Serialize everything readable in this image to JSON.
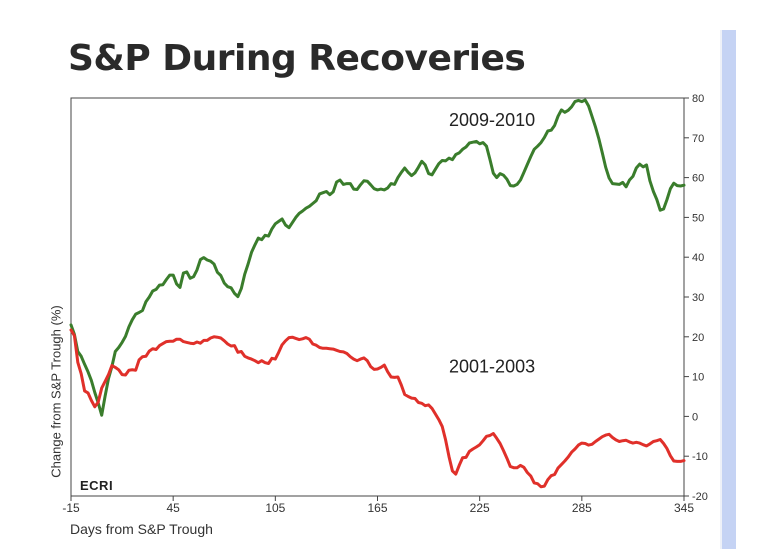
{
  "page": {
    "background": "#ffffff",
    "sidebar_color": "#c5d3f4"
  },
  "chart_data": {
    "type": "line",
    "title": "S&P During Recoveries",
    "xlabel": "Days from S&P Trough",
    "ylabel": "Change from S&P Trough (%)",
    "xlim": [
      -15,
      345
    ],
    "ylim": [
      -20,
      80
    ],
    "x_ticks": [
      -15,
      45,
      105,
      165,
      225,
      285,
      345
    ],
    "y_ticks": [
      -20,
      -10,
      0,
      10,
      20,
      30,
      40,
      50,
      60,
      70,
      80
    ],
    "y_axis_side": "right",
    "grid": false,
    "logo": "ECRI",
    "series": [
      {
        "name": "2009-2010",
        "color": "#3a7d2c",
        "label_pos": [
          207,
          73
        ],
        "x": [
          -15,
          -13,
          -11,
          -9,
          -7,
          -5,
          -3,
          -1,
          1,
          3,
          5,
          7,
          9,
          11,
          13,
          15,
          17,
          19,
          21,
          23,
          25,
          27,
          29,
          31,
          33,
          35,
          37,
          39,
          41,
          43,
          45,
          47,
          49,
          51,
          53,
          55,
          57,
          59,
          61,
          63,
          65,
          67,
          69,
          71,
          73,
          75,
          77,
          79,
          81,
          83,
          85,
          87,
          89,
          91,
          93,
          95,
          97,
          99,
          101,
          103,
          105,
          107,
          109,
          111,
          113,
          115,
          117,
          119,
          121,
          123,
          125,
          127,
          129,
          131,
          133,
          135,
          137,
          139,
          141,
          143,
          145,
          147,
          149,
          151,
          153,
          155,
          157,
          159,
          161,
          163,
          165,
          167,
          169,
          171,
          173,
          175,
          177,
          179,
          181,
          183,
          185,
          187,
          189,
          191,
          193,
          195,
          197,
          199,
          201,
          203,
          205,
          207,
          209,
          211,
          213,
          215,
          217,
          219,
          221,
          223,
          225,
          227,
          229,
          231,
          233,
          235,
          237,
          239,
          241,
          243,
          245,
          247,
          249,
          251,
          253,
          255,
          257,
          259,
          261,
          263,
          265,
          267,
          269,
          271,
          273,
          275,
          277,
          279,
          281,
          283,
          285,
          287,
          289,
          291,
          293,
          295,
          297,
          299,
          301,
          303,
          305,
          307,
          309,
          311,
          313,
          315,
          317,
          319,
          321,
          323,
          325,
          327,
          329,
          331,
          333,
          335,
          337,
          339,
          341,
          343,
          345
        ],
        "values": [
          23.0,
          20.6,
          16.3,
          15.1,
          13.1,
          11.2,
          9.0,
          6.0,
          3.4,
          0.3,
          5.1,
          9.5,
          12.5,
          16.3,
          17.3,
          18.6,
          20.1,
          22.5,
          24.3,
          25.7,
          26.1,
          26.6,
          28.8,
          30.0,
          31.5,
          31.9,
          33.0,
          33.1,
          34.4,
          35.5,
          35.5,
          33.3,
          32.4,
          36.0,
          36.3,
          34.7,
          35.1,
          36.8,
          39.4,
          39.9,
          39.3,
          39.0,
          38.3,
          36.2,
          35.4,
          33.5,
          32.6,
          32.3,
          30.9,
          30.1,
          32.1,
          35.7,
          38.3,
          41.2,
          43.1,
          44.8,
          44.4,
          45.5,
          45.3,
          47.1,
          48.4,
          49.0,
          49.6,
          48.1,
          47.4,
          48.7,
          50.0,
          51.0,
          51.6,
          52.3,
          52.8,
          53.5,
          54.2,
          55.9,
          56.2,
          56.5,
          55.7,
          56.4,
          58.9,
          59.4,
          58.3,
          58.5,
          58.5,
          57.1,
          57.0,
          58.2,
          59.2,
          59.1,
          58.2,
          57.2,
          56.9,
          57.1,
          56.9,
          57.4,
          58.5,
          58.3,
          60.0,
          61.3,
          62.4,
          61.3,
          60.5,
          61.2,
          62.6,
          64.1,
          63.2,
          61.0,
          60.7,
          62.1,
          63.5,
          64.3,
          64.2,
          64.9,
          64.5,
          65.8,
          66.2,
          67.1,
          67.7,
          68.7,
          68.9,
          69.1,
          68.5,
          68.8,
          67.9,
          64.6,
          61.1,
          60.0,
          61.0,
          60.6,
          59.6,
          58.0,
          57.9,
          58.3,
          59.4,
          61.3,
          63.3,
          65.3,
          67.1,
          67.9,
          68.8,
          70.1,
          71.7,
          71.9,
          73.1,
          75.4,
          77.0,
          76.4,
          76.9,
          77.8,
          79.1,
          79.4,
          79.1,
          79.5,
          78.0,
          75.4,
          72.7,
          69.7,
          66.2,
          62.6,
          59.9,
          58.5,
          58.4,
          58.3,
          58.8,
          57.7,
          59.4,
          60.3,
          62.4,
          63.4,
          62.7,
          63.2,
          59.2,
          56.5,
          54.5,
          51.8,
          52.1,
          54.5,
          57.2,
          58.6,
          58.0,
          57.9,
          58.1
        ]
      },
      {
        "name": "2001-2003",
        "color": "#e0302a",
        "label_pos": [
          207,
          11
        ],
        "x": [
          -15,
          -13,
          -11,
          -9,
          -7,
          -5,
          -3,
          -1,
          1,
          3,
          5,
          7,
          9,
          11,
          13,
          15,
          17,
          19,
          21,
          23,
          25,
          27,
          29,
          31,
          33,
          35,
          37,
          39,
          41,
          43,
          45,
          47,
          49,
          51,
          53,
          55,
          57,
          59,
          61,
          63,
          65,
          67,
          69,
          71,
          73,
          75,
          77,
          79,
          81,
          83,
          85,
          87,
          89,
          91,
          93,
          95,
          97,
          99,
          101,
          103,
          105,
          107,
          109,
          111,
          113,
          115,
          117,
          119,
          121,
          123,
          125,
          127,
          129,
          131,
          133,
          135,
          137,
          139,
          141,
          143,
          145,
          147,
          149,
          151,
          153,
          155,
          157,
          159,
          161,
          163,
          165,
          167,
          169,
          171,
          173,
          175,
          177,
          179,
          181,
          183,
          185,
          187,
          189,
          191,
          193,
          195,
          197,
          199,
          201,
          203,
          205,
          207,
          209,
          211,
          213,
          215,
          217,
          219,
          221,
          223,
          225,
          227,
          229,
          231,
          233,
          235,
          237,
          239,
          241,
          243,
          245,
          247,
          249,
          251,
          253,
          255,
          257,
          259,
          261,
          263,
          265,
          267,
          269,
          271,
          273,
          275,
          277,
          279,
          281,
          283,
          285,
          287,
          289,
          291,
          293,
          295,
          297,
          299,
          301,
          303,
          305,
          307,
          309,
          311,
          313,
          315,
          317,
          319,
          321,
          323,
          325,
          327,
          329,
          331,
          333,
          335,
          337,
          339,
          341,
          343,
          345
        ],
        "values": [
          21.7,
          20.3,
          13.6,
          10.7,
          6.4,
          5.9,
          4.0,
          2.4,
          3.6,
          7.1,
          8.8,
          10.5,
          12.8,
          12.3,
          11.7,
          10.5,
          10.4,
          11.6,
          11.7,
          11.6,
          14.2,
          15.0,
          15.1,
          16.4,
          17.0,
          16.8,
          17.8,
          18.3,
          18.8,
          18.9,
          18.9,
          19.4,
          19.4,
          18.8,
          18.6,
          18.4,
          18.3,
          18.7,
          18.4,
          19.1,
          19.1,
          19.7,
          20.0,
          19.9,
          19.7,
          19.0,
          18.2,
          17.7,
          17.8,
          16.1,
          16.3,
          15.1,
          14.7,
          14.4,
          14.0,
          13.5,
          14.0,
          13.5,
          13.3,
          14.6,
          14.4,
          16.1,
          18.0,
          19.0,
          19.8,
          19.9,
          19.6,
          19.3,
          19.5,
          19.8,
          19.4,
          18.2,
          17.9,
          17.3,
          17.1,
          17.1,
          17.0,
          16.9,
          16.6,
          16.3,
          16.2,
          15.8,
          15.0,
          14.4,
          14.0,
          14.4,
          14.7,
          14.0,
          12.5,
          11.8,
          11.9,
          12.3,
          12.9,
          11.2,
          9.9,
          9.8,
          9.9,
          7.9,
          5.5,
          5.0,
          4.6,
          4.5,
          3.5,
          3.3,
          2.7,
          2.9,
          2.0,
          0.6,
          -0.8,
          -2.5,
          -5.9,
          -10.1,
          -13.7,
          -14.5,
          -12.3,
          -10.4,
          -10.3,
          -8.8,
          -8.2,
          -7.7,
          -7.1,
          -6.1,
          -5.0,
          -4.8,
          -4.3,
          -5.5,
          -6.8,
          -8.6,
          -10.5,
          -12.6,
          -12.9,
          -12.9,
          -12.3,
          -12.8,
          -14.1,
          -15.0,
          -16.7,
          -16.9,
          -17.7,
          -17.5,
          -15.9,
          -14.9,
          -14.6,
          -13.0,
          -12.1,
          -11.2,
          -10.2,
          -9.0,
          -8.2,
          -7.2,
          -6.7,
          -6.8,
          -7.2,
          -7.0,
          -6.3,
          -5.7,
          -5.1,
          -4.7,
          -4.5,
          -5.3,
          -5.9,
          -6.3,
          -6.1,
          -6.0,
          -6.4,
          -6.7,
          -6.5,
          -6.7,
          -7.1,
          -7.4,
          -6.9,
          -6.3,
          -6.1,
          -5.8,
          -6.8,
          -8.1,
          -9.9,
          -11.2,
          -11.3,
          -11.3,
          -11.1
        ]
      }
    ]
  }
}
